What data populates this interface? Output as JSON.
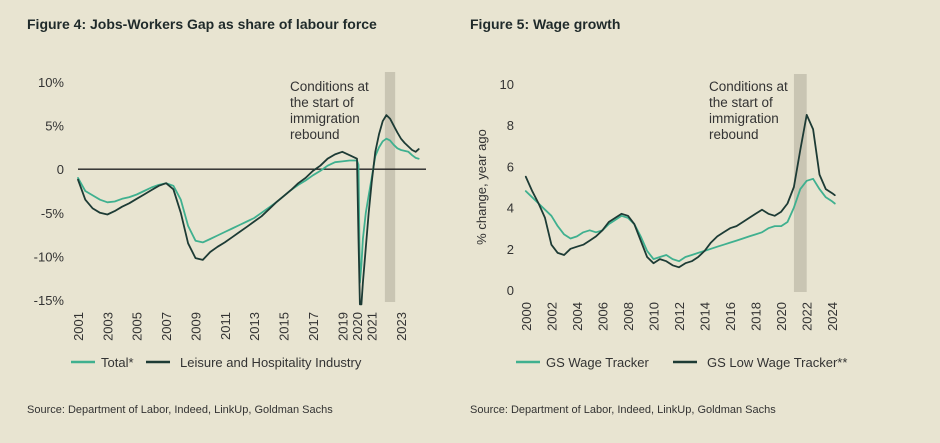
{
  "colors": {
    "background": "#e8e4d1",
    "shade": "#c9c5b3",
    "teal": "#3fb08f",
    "dark": "#1d3b35",
    "zero_line": "#222222"
  },
  "chart_data": [
    {
      "type": "line",
      "title": "Figure 4: Jobs-Workers Gap as share of labour force",
      "source": "Source: Department of Labor, Indeed, LinkUp, Goldman Sachs",
      "xlabel": "",
      "ylabel": "",
      "xlim": [
        2001,
        2024.7
      ],
      "ylim": [
        -15,
        10
      ],
      "x_ticks": [
        2001,
        2003,
        2005,
        2007,
        2009,
        2011,
        2013,
        2015,
        2017,
        2019,
        2020,
        2021,
        2023
      ],
      "y_ticks": [
        {
          "value": 10,
          "label": "10%"
        },
        {
          "value": 5,
          "label": "5%"
        },
        {
          "value": 0,
          "label": "0"
        },
        {
          "value": -5,
          "label": "-5%"
        },
        {
          "value": -10,
          "label": "-10%"
        },
        {
          "value": -15,
          "label": "-15%"
        }
      ],
      "zero_line": 0,
      "shaded_region": {
        "x0": 2021.9,
        "x1": 2022.6
      },
      "annotation": {
        "lines": [
          "Conditions at",
          "the start of",
          "immigration",
          "rebound"
        ]
      },
      "series": [
        {
          "name": "Total*",
          "color": "#3fb08f",
          "x": [
            2001,
            2001.5,
            2002,
            2002.5,
            2003,
            2003.5,
            2004,
            2004.5,
            2005,
            2005.5,
            2006,
            2006.5,
            2007,
            2007.5,
            2008,
            2008.5,
            2009,
            2009.5,
            2010,
            2010.5,
            2011,
            2011.5,
            2012,
            2012.5,
            2013,
            2013.5,
            2014,
            2014.5,
            2015,
            2015.5,
            2016,
            2016.5,
            2017,
            2017.5,
            2018,
            2018.5,
            2019,
            2019.5,
            2020,
            2020.1,
            2020.2,
            2020.3,
            2020.4,
            2020.6,
            2020.8,
            2021,
            2021.25,
            2021.5,
            2021.75,
            2022,
            2022.25,
            2022.5,
            2022.75,
            2023,
            2023.25,
            2023.5,
            2023.75,
            2024,
            2024.2
          ],
          "values": [
            -1,
            -2.5,
            -3,
            -3.5,
            -3.8,
            -3.7,
            -3.4,
            -3.2,
            -2.9,
            -2.5,
            -2.1,
            -1.8,
            -1.6,
            -1.9,
            -3.5,
            -6.5,
            -8.2,
            -8.4,
            -8,
            -7.6,
            -7.2,
            -6.8,
            -6.4,
            -6,
            -5.6,
            -5,
            -4.4,
            -3.8,
            -3.1,
            -2.4,
            -1.8,
            -1.3,
            -0.7,
            -0.2,
            0.4,
            0.8,
            0.9,
            1,
            1,
            0.5,
            -13,
            -11,
            -8,
            -5,
            -3,
            -1,
            1.5,
            2.5,
            3.2,
            3.5,
            3.3,
            2.8,
            2.4,
            2.2,
            2.1,
            2,
            1.6,
            1.3,
            1.2
          ]
        },
        {
          "name": "Leisure and Hospitality Industry",
          "color": "#1d3b35",
          "x": [
            2001,
            2001.5,
            2002,
            2002.5,
            2003,
            2003.5,
            2004,
            2004.5,
            2005,
            2005.5,
            2006,
            2006.5,
            2007,
            2007.5,
            2008,
            2008.5,
            2009,
            2009.5,
            2010,
            2010.5,
            2011,
            2011.5,
            2012,
            2012.5,
            2013,
            2013.5,
            2014,
            2014.5,
            2015,
            2015.5,
            2016,
            2016.5,
            2017,
            2017.5,
            2018,
            2018.5,
            2019,
            2019.5,
            2020,
            2020.1,
            2020.2,
            2020.3,
            2020.4,
            2020.6,
            2020.8,
            2021,
            2021.25,
            2021.5,
            2021.75,
            2022,
            2022.25,
            2022.5,
            2022.75,
            2023,
            2023.25,
            2023.5,
            2023.75,
            2024,
            2024.2
          ],
          "values": [
            -1.2,
            -3.5,
            -4.5,
            -5,
            -5.2,
            -4.8,
            -4.3,
            -3.9,
            -3.4,
            -2.9,
            -2.4,
            -1.9,
            -1.6,
            -2.3,
            -5,
            -8.5,
            -10.2,
            -10.4,
            -9.5,
            -8.9,
            -8.4,
            -7.8,
            -7.2,
            -6.6,
            -6,
            -5.4,
            -4.6,
            -3.8,
            -3.1,
            -2.4,
            -1.6,
            -1,
            -0.2,
            0.4,
            1.2,
            1.7,
            2,
            1.6,
            1.2,
            -8,
            -15.5,
            -15.5,
            -13,
            -9,
            -5,
            -1.5,
            2,
            4,
            5.5,
            6.2,
            5.8,
            5,
            4.2,
            3.5,
            3,
            2.6,
            2.2,
            2,
            2.3
          ]
        }
      ]
    },
    {
      "type": "line",
      "title": "Figure 5: Wage growth",
      "source": "Source: Department of Labor, Indeed, LinkUp, Goldman Sachs",
      "xlabel": "",
      "ylabel": "% change, year ago",
      "xlim": [
        1999.7,
        2025
      ],
      "ylim": [
        0,
        10
      ],
      "x_ticks": [
        2000,
        2002,
        2004,
        2006,
        2008,
        2010,
        2012,
        2014,
        2016,
        2018,
        2020,
        2022,
        2024
      ],
      "y_ticks": [
        {
          "value": 10,
          "label": "10"
        },
        {
          "value": 8,
          "label": "8"
        },
        {
          "value": 6,
          "label": "6"
        },
        {
          "value": 4,
          "label": "4"
        },
        {
          "value": 2,
          "label": "2"
        },
        {
          "value": 0,
          "label": "0"
        }
      ],
      "shaded_region": {
        "x0": 2021.0,
        "x1": 2022.0
      },
      "annotation": {
        "lines": [
          "Conditions at",
          "the start of",
          "immigration",
          "rebound"
        ]
      },
      "series": [
        {
          "name": "GS Wage Tracker",
          "color": "#3fb08f",
          "x": [
            2000,
            2000.5,
            2001,
            2001.5,
            2002,
            2002.5,
            2003,
            2003.5,
            2004,
            2004.5,
            2005,
            2005.5,
            2006,
            2006.5,
            2007,
            2007.5,
            2008,
            2008.5,
            2009,
            2009.5,
            2010,
            2010.5,
            2011,
            2011.5,
            2012,
            2012.5,
            2013,
            2013.5,
            2014,
            2014.5,
            2015,
            2015.5,
            2016,
            2016.5,
            2017,
            2017.5,
            2018,
            2018.5,
            2019,
            2019.5,
            2020,
            2020.5,
            2021,
            2021.5,
            2022,
            2022.5,
            2023,
            2023.5,
            2024,
            2024.2
          ],
          "values": [
            4.8,
            4.5,
            4.2,
            3.9,
            3.6,
            3.1,
            2.7,
            2.5,
            2.6,
            2.8,
            2.9,
            2.8,
            2.9,
            3.2,
            3.4,
            3.6,
            3.5,
            3.2,
            2.6,
            1.9,
            1.5,
            1.6,
            1.7,
            1.5,
            1.4,
            1.6,
            1.7,
            1.8,
            1.9,
            2,
            2.1,
            2.2,
            2.3,
            2.4,
            2.5,
            2.6,
            2.7,
            2.8,
            3,
            3.1,
            3.1,
            3.3,
            4,
            4.9,
            5.3,
            5.4,
            4.9,
            4.5,
            4.3,
            4.2
          ]
        },
        {
          "name": "GS Low Wage Tracker**",
          "color": "#1d3b35",
          "x": [
            2000,
            2000.5,
            2001,
            2001.5,
            2002,
            2002.5,
            2003,
            2003.5,
            2004,
            2004.5,
            2005,
            2005.5,
            2006,
            2006.5,
            2007,
            2007.5,
            2008,
            2008.5,
            2009,
            2009.5,
            2010,
            2010.5,
            2011,
            2011.5,
            2012,
            2012.5,
            2013,
            2013.5,
            2014,
            2014.5,
            2015,
            2015.5,
            2016,
            2016.5,
            2017,
            2017.5,
            2018,
            2018.5,
            2019,
            2019.5,
            2020,
            2020.5,
            2021,
            2021.5,
            2022,
            2022.5,
            2023,
            2023.5,
            2024,
            2024.2
          ],
          "values": [
            5.5,
            4.8,
            4.2,
            3.5,
            2.2,
            1.8,
            1.7,
            2,
            2.1,
            2.2,
            2.4,
            2.6,
            2.9,
            3.3,
            3.5,
            3.7,
            3.6,
            3.2,
            2.4,
            1.6,
            1.3,
            1.5,
            1.4,
            1.2,
            1.1,
            1.3,
            1.4,
            1.6,
            1.9,
            2.3,
            2.6,
            2.8,
            3,
            3.1,
            3.3,
            3.5,
            3.7,
            3.9,
            3.7,
            3.6,
            3.8,
            4.2,
            5,
            6.8,
            8.5,
            7.8,
            5.6,
            4.9,
            4.7,
            4.6
          ]
        }
      ]
    }
  ]
}
